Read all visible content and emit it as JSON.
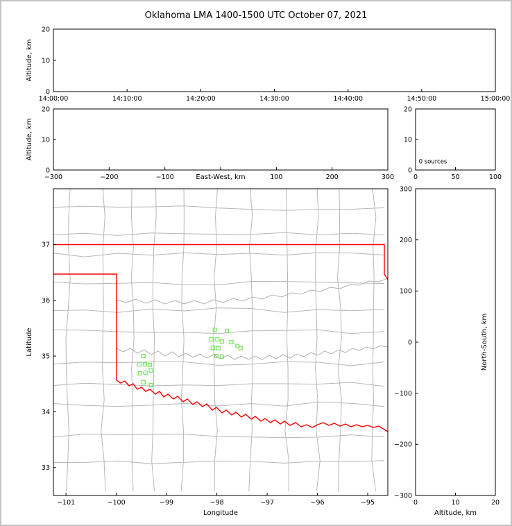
{
  "figure": {
    "title": "Oklahoma LMA 1400-1500 UTC October 07, 2021"
  },
  "colors": {
    "source_marker": "#74e556",
    "state_border": "#ff0000",
    "county_lines": "#b6b6b6",
    "axis": "#000000"
  },
  "chart_data": [
    {
      "id": "altitude_time",
      "type": "scatter",
      "desc": "Altitude vs time panel (no sources plotted)",
      "xlim": [
        0,
        3600
      ],
      "ylim": [
        0,
        20
      ],
      "xticks": [
        {
          "v": 0,
          "label": "14:00:00"
        },
        {
          "v": 600,
          "label": "14:10:00"
        },
        {
          "v": 1200,
          "label": "14:20:00"
        },
        {
          "v": 1800,
          "label": "14:30:00"
        },
        {
          "v": 2400,
          "label": "14:40:00"
        },
        {
          "v": 3000,
          "label": "14:50:00"
        },
        {
          "v": 3600,
          "label": "15:00:00"
        }
      ],
      "yticks": [
        {
          "v": 0,
          "label": "0"
        },
        {
          "v": 10,
          "label": "10"
        },
        {
          "v": 20,
          "label": "20"
        }
      ],
      "xtitle": "",
      "ytitle": "Altitude, km",
      "points": []
    },
    {
      "id": "altitude_ew",
      "type": "scatter",
      "desc": "Altitude vs East-West distance panel (no sources plotted)",
      "xlim": [
        -300,
        300
      ],
      "ylim": [
        0,
        20
      ],
      "xticks": [
        {
          "v": -300,
          "label": "−300"
        },
        {
          "v": -200,
          "label": "−200"
        },
        {
          "v": -100,
          "label": "−100"
        },
        {
          "v": 0,
          "label": ""
        },
        {
          "v": 100,
          "label": "100"
        },
        {
          "v": 200,
          "label": "200"
        },
        {
          "v": 300,
          "label": "300"
        }
      ],
      "yticks": [
        {
          "v": 0,
          "label": "0"
        },
        {
          "v": 10,
          "label": "10"
        },
        {
          "v": 20,
          "label": "20"
        }
      ],
      "xtitle": "East-West, km",
      "xtitle_inline": true,
      "xtitle_at": 0,
      "ytitle": "Altitude, km",
      "points": []
    },
    {
      "id": "source_histogram",
      "type": "bar",
      "desc": "Altitude histogram panel",
      "xlim": [
        0,
        100
      ],
      "ylim": [
        0,
        20
      ],
      "xticks": [
        {
          "v": 0,
          "label": "0"
        },
        {
          "v": 50,
          "label": "50"
        },
        {
          "v": 100,
          "label": "100"
        }
      ],
      "yticks": [
        {
          "v": 0,
          "label": "0"
        },
        {
          "v": 10,
          "label": "10"
        },
        {
          "v": 20,
          "label": "20"
        }
      ],
      "annotations": [
        {
          "text": "0 sources",
          "x": 4,
          "y": 2.2
        }
      ],
      "points": []
    },
    {
      "id": "map",
      "type": "scatter",
      "desc": "Plan-view map of Oklahoma with VHF source locations (green squares)",
      "xlim": [
        -101.25,
        -94.6
      ],
      "ylim": [
        32.5,
        38.0
      ],
      "xticks": [
        {
          "v": -101,
          "label": "−101"
        },
        {
          "v": -100,
          "label": "−100"
        },
        {
          "v": -99,
          "label": "−99"
        },
        {
          "v": -98,
          "label": "−98"
        },
        {
          "v": -97,
          "label": "−97"
        },
        {
          "v": -96,
          "label": "−96"
        },
        {
          "v": -95,
          "label": "−95"
        }
      ],
      "yticks": [
        {
          "v": 33,
          "label": "33"
        },
        {
          "v": 34,
          "label": "34"
        },
        {
          "v": 35,
          "label": "35"
        },
        {
          "v": 36,
          "label": "36"
        },
        {
          "v": 37,
          "label": "37"
        }
      ],
      "xtitle": "Longitude",
      "ytitle": "Latitude",
      "points": [
        [
          -99.46,
          35.0
        ],
        [
          -99.54,
          34.85
        ],
        [
          -99.43,
          34.85
        ],
        [
          -99.33,
          34.84
        ],
        [
          -99.53,
          34.69
        ],
        [
          -99.42,
          34.7
        ],
        [
          -99.31,
          34.74
        ],
        [
          -99.46,
          34.53
        ],
        [
          -99.31,
          34.48
        ],
        [
          -98.04,
          35.47
        ],
        [
          -97.8,
          35.45
        ],
        [
          -98.11,
          35.3
        ],
        [
          -97.99,
          35.3
        ],
        [
          -97.9,
          35.26
        ],
        [
          -97.71,
          35.25
        ],
        [
          -98.08,
          35.15
        ],
        [
          -97.97,
          35.14
        ],
        [
          -97.59,
          35.18
        ],
        [
          -97.53,
          35.14
        ],
        [
          -98.01,
          35.0
        ],
        [
          -97.9,
          34.99
        ]
      ]
    },
    {
      "id": "altitude_ns",
      "type": "scatter",
      "desc": "North-South distance vs altitude panel (no sources plotted)",
      "xlim": [
        0,
        20
      ],
      "ylim": [
        -300,
        300
      ],
      "xticks": [
        {
          "v": 0,
          "label": "0"
        },
        {
          "v": 10,
          "label": "10"
        },
        {
          "v": 20,
          "label": "20"
        }
      ],
      "yticks": [
        {
          "v": -300,
          "label": "−300"
        },
        {
          "v": -200,
          "label": "−200"
        },
        {
          "v": -100,
          "label": "−100"
        },
        {
          "v": 0,
          "label": "0"
        },
        {
          "v": 100,
          "label": "100"
        },
        {
          "v": 200,
          "label": "200"
        },
        {
          "v": 300,
          "label": "300"
        }
      ],
      "xtitle": "Altitude, km",
      "ytitle": "North-South, km",
      "ytitle_side": "right",
      "points": []
    }
  ]
}
